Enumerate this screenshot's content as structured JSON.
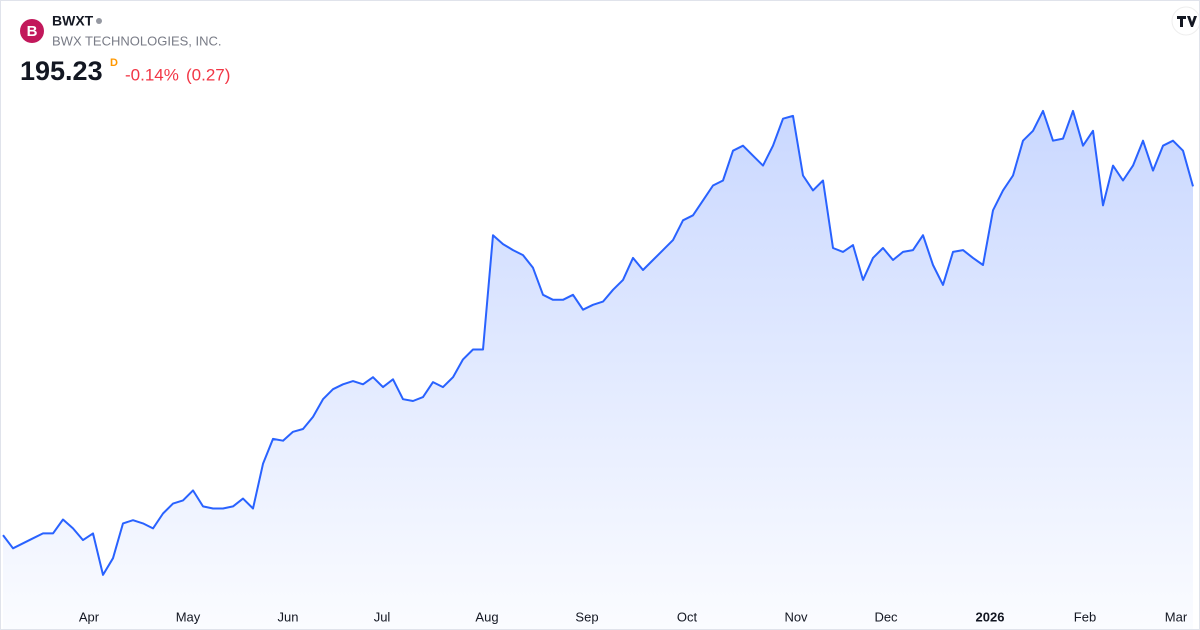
{
  "header": {
    "logo_letter": "B",
    "symbol": "BWXT",
    "company": "BWX TECHNOLOGIES, INC.",
    "price": "195.23",
    "interval": "D",
    "change_pct": "-0.14%",
    "change_abs": "(0.27)"
  },
  "chart_data": {
    "type": "area",
    "color": "#2962ff",
    "values": [
      97.0,
      93.3,
      94.7,
      96.1,
      97.5,
      97.5,
      101.4,
      98.9,
      95.6,
      97.5,
      85.8,
      90.5,
      100.3,
      101.2,
      100.3,
      98.9,
      103.1,
      105.9,
      106.8,
      109.6,
      105.1,
      104.5,
      104.5,
      105.1,
      107.3,
      104.5,
      117.1,
      124.1,
      123.6,
      126.1,
      126.9,
      130.3,
      135.3,
      138.1,
      139.5,
      140.4,
      139.5,
      141.5,
      138.7,
      140.9,
      135.3,
      134.8,
      135.9,
      140.1,
      138.7,
      141.5,
      146.5,
      149.3,
      149.3,
      181.5,
      179.0,
      177.3,
      175.9,
      172.3,
      164.7,
      163.3,
      163.3,
      164.7,
      160.5,
      161.9,
      162.8,
      166.1,
      168.9,
      175.1,
      171.7,
      174.5,
      177.3,
      180.1,
      185.7,
      187.1,
      191.3,
      195.5,
      196.9,
      205.3,
      206.7,
      203.9,
      201.1,
      206.7,
      214.3,
      215.1,
      198.3,
      194.1,
      196.9,
      177.9,
      176.8,
      178.7,
      168.9,
      175.1,
      177.9,
      174.5,
      176.8,
      177.3,
      181.5,
      173.1,
      167.5,
      176.8,
      177.3,
      175.1,
      173.1,
      188.5,
      194.1,
      198.3,
      208.1,
      210.9,
      216.5,
      208.1,
      208.7,
      216.5,
      206.7,
      210.9,
      189.9,
      201.1,
      196.9,
      201.1,
      208.1,
      199.7,
      206.7,
      208.1,
      205.3,
      195.23
    ],
    "xlim": [
      0,
      119
    ],
    "ylim": [
      70,
      230
    ],
    "xticks": [
      {
        "value": 8.6,
        "label": "Apr"
      },
      {
        "value": 18.5,
        "label": "May"
      },
      {
        "value": 28.5,
        "label": "Jun"
      },
      {
        "value": 37.9,
        "label": "Jul"
      },
      {
        "value": 48.4,
        "label": "Aug"
      },
      {
        "value": 58.4,
        "label": "Sep"
      },
      {
        "value": 68.4,
        "label": "Oct"
      },
      {
        "value": 79.3,
        "label": "Nov"
      },
      {
        "value": 88.3,
        "label": "Dec"
      },
      {
        "value": 98.7,
        "label": "2026"
      },
      {
        "value": 108.2,
        "label": "Feb"
      },
      {
        "value": 117.3,
        "label": "Mar"
      }
    ]
  }
}
